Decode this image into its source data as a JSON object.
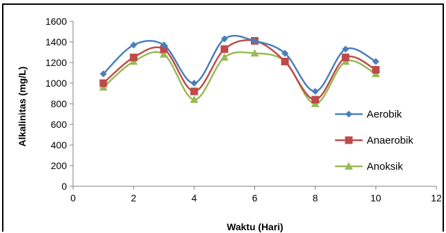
{
  "chart_data": {
    "type": "line",
    "title": "",
    "xlabel": "Waktu (Hari)",
    "ylabel": "Alkalinitas (mg/L)",
    "xlim": [
      0,
      12
    ],
    "ylim": [
      0,
      1600
    ],
    "xticks": [
      0,
      2,
      4,
      6,
      8,
      10,
      12
    ],
    "yticks": [
      0,
      200,
      400,
      600,
      800,
      1000,
      1200,
      1400,
      1600
    ],
    "grid": false,
    "smoothed": true,
    "legend": "right",
    "x": [
      1,
      2,
      3,
      4,
      5,
      6,
      7,
      8,
      9,
      10
    ],
    "series": [
      {
        "name": "Aerobik",
        "color": "#4a7ebb",
        "marker": "diamond",
        "values": [
          1090,
          1370,
          1370,
          1000,
          1430,
          1410,
          1290,
          920,
          1330,
          1210
        ]
      },
      {
        "name": "Anaerobik",
        "color": "#be4b48",
        "marker": "square",
        "values": [
          1000,
          1250,
          1330,
          920,
          1330,
          1410,
          1210,
          840,
          1250,
          1130
        ]
      },
      {
        "name": "Anoksik",
        "color": "#98b954",
        "marker": "triangle",
        "values": [
          960,
          1210,
          1280,
          840,
          1250,
          1290,
          1210,
          800,
          1210,
          1090
        ]
      }
    ]
  }
}
